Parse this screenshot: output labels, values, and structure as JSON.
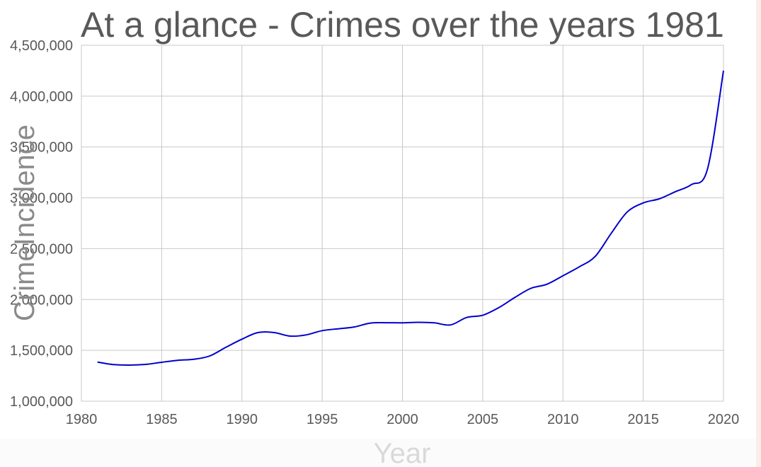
{
  "chart_data": {
    "type": "line",
    "title": "At a glance - Crimes over the years 1981",
    "xlabel": "Year",
    "ylabel": "CrimeIncidence",
    "xlim": [
      1980,
      2020
    ],
    "ylim": [
      1000000,
      4500000
    ],
    "x_ticks": [
      "1980",
      "1985",
      "1990",
      "1995",
      "2000",
      "2005",
      "2010",
      "2015",
      "2020"
    ],
    "y_ticks": [
      "1,000,000",
      "1,500,000",
      "2,000,000",
      "2,500,000",
      "3,000,000",
      "3,500,000",
      "4,000,000",
      "4,500,000"
    ],
    "grid": true,
    "legend": "none",
    "line_color": "#0000cc",
    "series": [
      {
        "x": [
          1981,
          1982,
          1983,
          1984,
          1985,
          1986,
          1987,
          1988,
          1989,
          1990,
          1991,
          1992,
          1993,
          1994,
          1995,
          1996,
          1997,
          1998,
          1999,
          2000,
          2001,
          2002,
          2003,
          2004,
          2005,
          2006,
          2007,
          2008,
          2009,
          2010,
          2011,
          2012,
          2013,
          2014,
          2015,
          2016,
          2017,
          2018,
          2019,
          2020
        ],
        "values": [
          1385000,
          1360000,
          1355000,
          1362000,
          1383000,
          1402000,
          1412000,
          1445000,
          1530000,
          1610000,
          1675000,
          1675000,
          1640000,
          1652000,
          1694000,
          1712000,
          1730000,
          1768000,
          1772000,
          1771000,
          1776000,
          1770000,
          1750000,
          1823000,
          1845000,
          1920000,
          2020000,
          2110000,
          2150000,
          2234000,
          2320000,
          2422000,
          2650000,
          2860000,
          2950000,
          2990000,
          3060000,
          3130000,
          3280000,
          4250000
        ]
      }
    ]
  }
}
